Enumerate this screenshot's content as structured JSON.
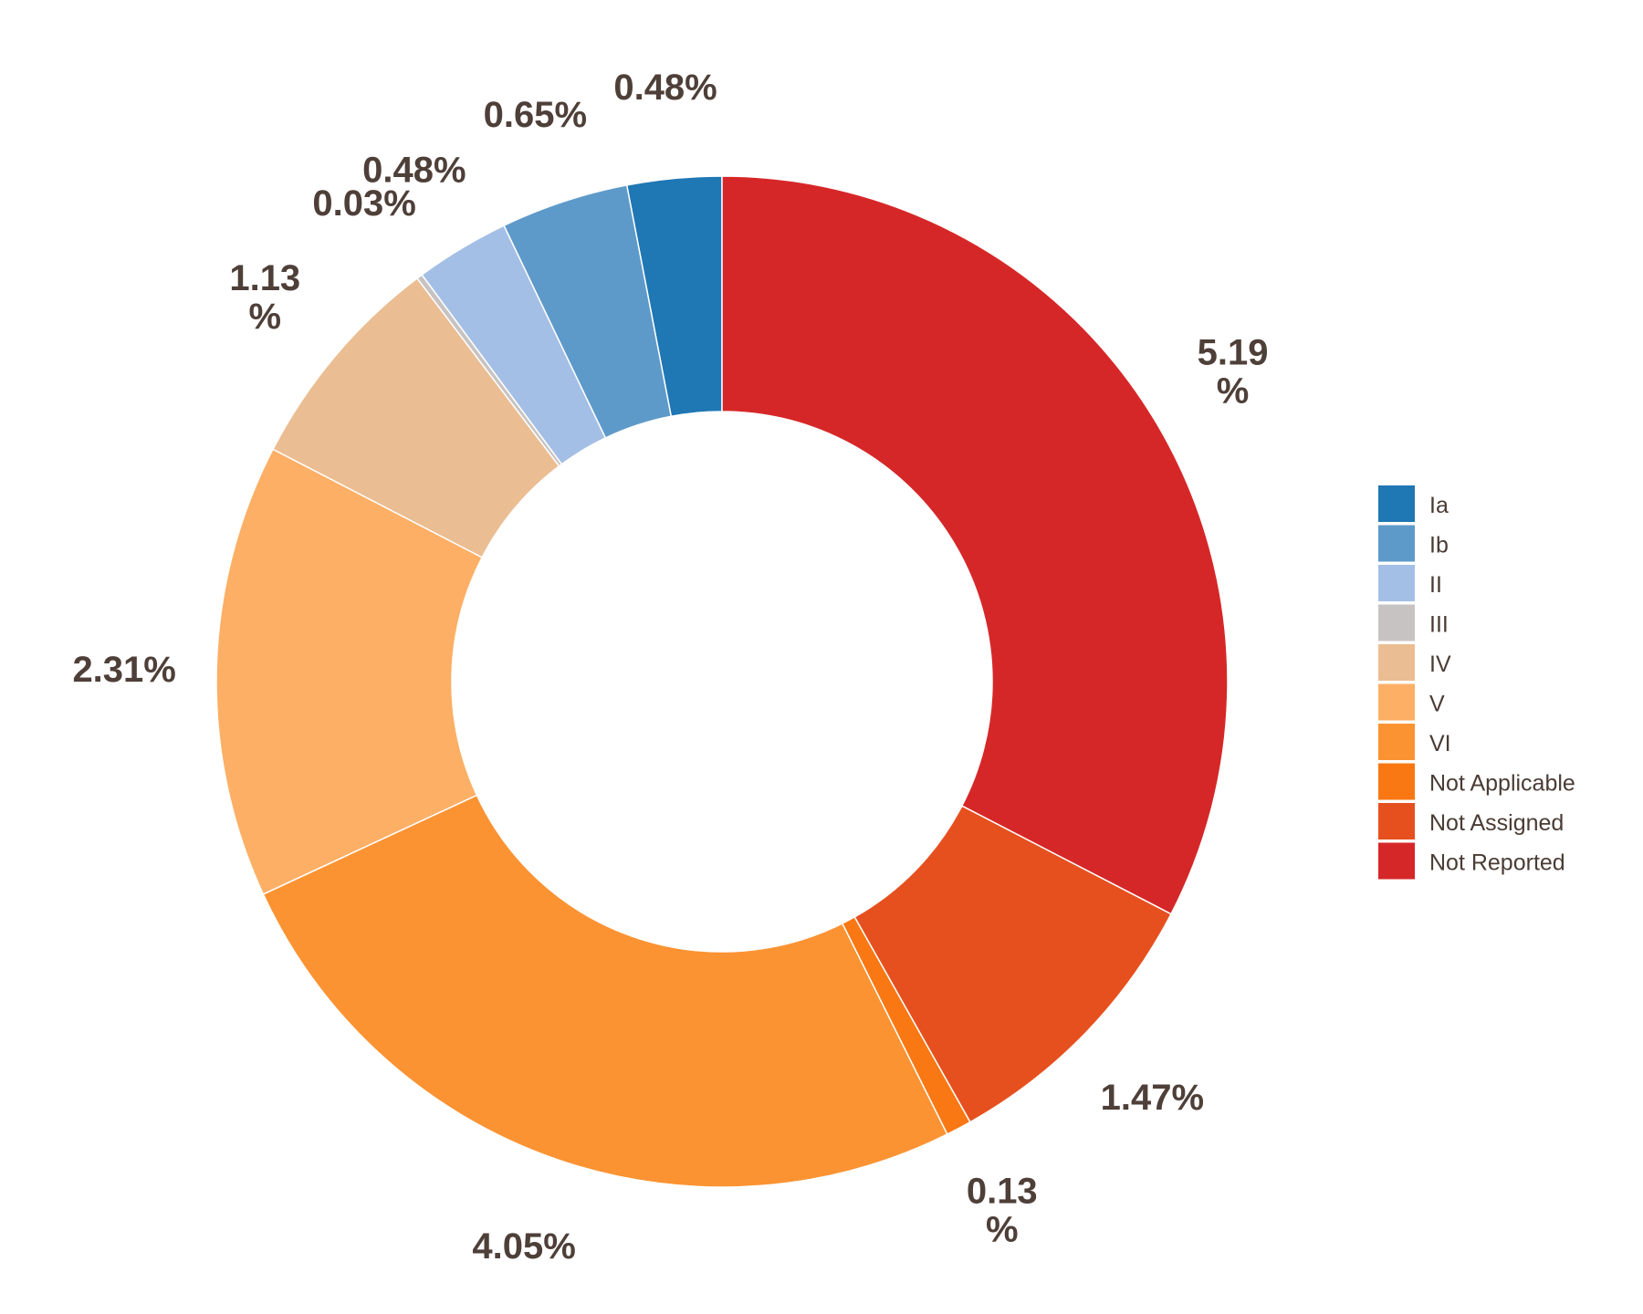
{
  "chart_data": {
    "type": "pie",
    "variant": "donut",
    "title": "",
    "slices": [
      {
        "label": "Ia",
        "value": 0.48,
        "display": "0.48%",
        "color": "#1f77b4"
      },
      {
        "label": "Ib",
        "value": 0.65,
        "display": "0.65%",
        "color": "#5e9ac9"
      },
      {
        "label": "II",
        "value": 0.48,
        "display": "0.48%",
        "color": "#a4bfe5"
      },
      {
        "label": "III",
        "value": 0.03,
        "display": "0.03%",
        "color": "#c8c3c3"
      },
      {
        "label": "IV",
        "value": 1.13,
        "display": "1.13\n%",
        "color": "#ebbd92"
      },
      {
        "label": "V",
        "value": 2.31,
        "display": "2.31%",
        "color": "#fdaf65"
      },
      {
        "label": "VI",
        "value": 4.05,
        "display": "4.05%",
        "color": "#fb9333"
      },
      {
        "label": "Not Applicable",
        "value": 0.13,
        "display": "0.13\n%",
        "color": "#f97813"
      },
      {
        "label": "Not Assigned",
        "value": 1.47,
        "display": "1.47%",
        "color": "#e6501f"
      },
      {
        "label": "Not Reported",
        "value": 5.19,
        "display": "5.19\n%",
        "color": "#d62728"
      }
    ],
    "legend_placement": "right"
  }
}
